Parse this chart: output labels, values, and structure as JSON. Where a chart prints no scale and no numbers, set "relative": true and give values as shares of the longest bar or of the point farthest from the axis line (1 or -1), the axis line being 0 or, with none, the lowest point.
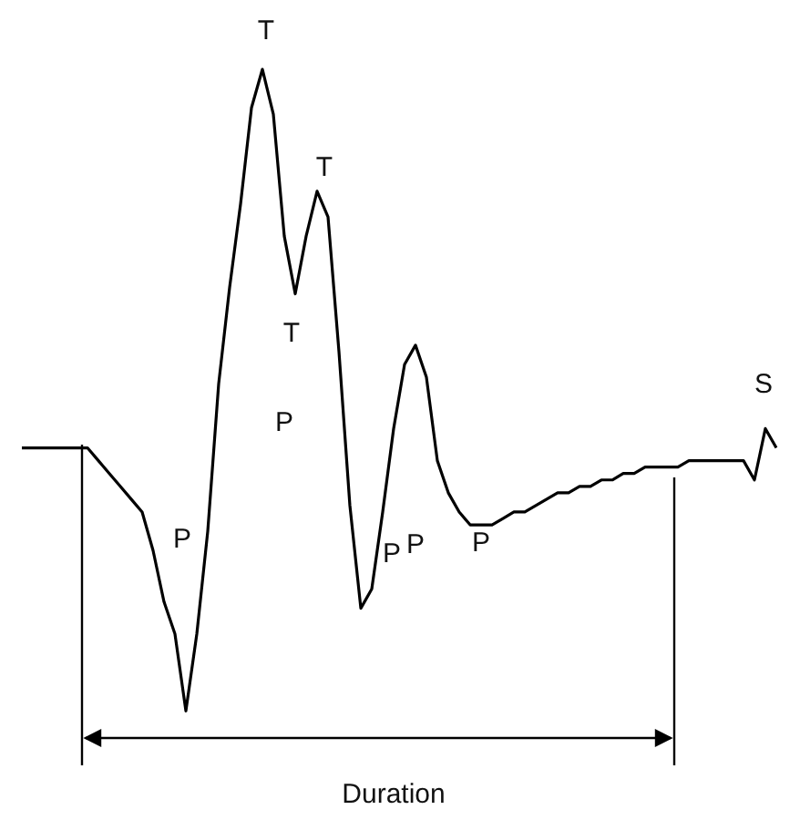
{
  "chart_data": {
    "type": "line",
    "relative": true,
    "legend": false,
    "grid": false,
    "tick_labels": false,
    "marker": "none",
    "line_style": "solid",
    "categories": [
      null,
      null,
      null,
      null,
      null,
      null,
      null,
      null,
      null,
      null,
      null,
      null,
      null,
      null,
      null,
      null,
      null,
      null,
      null,
      null,
      null,
      null,
      null,
      null,
      null,
      null,
      null,
      null,
      null,
      null,
      null,
      null,
      null,
      null,
      null,
      null,
      null,
      null,
      null,
      null,
      null,
      null,
      null,
      null,
      null,
      null,
      null,
      null,
      null,
      null,
      null,
      null,
      null,
      null,
      null,
      null,
      null,
      null,
      null,
      null,
      null,
      null,
      null,
      null,
      null,
      null,
      null,
      null,
      null,
      null
    ],
    "series": [
      {
        "color": "#000000",
        "values": [
          0.41,
          0.41,
          0.41,
          0.41,
          0.41,
          0.41,
          0.41,
          0.39,
          0.37,
          0.35,
          0.33,
          0.31,
          0.25,
          0.17,
          0.12,
          0,
          0.12,
          0.28,
          0.51,
          0.66,
          0.79,
          0.94,
          1,
          0.93,
          0.74,
          0.65,
          0.74,
          0.81,
          0.77,
          0.56,
          0.32,
          0.16,
          0.19,
          0.31,
          0.44,
          0.54,
          0.57,
          0.52,
          0.39,
          0.34,
          0.31,
          0.29,
          0.29,
          0.29,
          0.3,
          0.31,
          0.31,
          0.32,
          0.33,
          0.34,
          0.34,
          0.35,
          0.35,
          0.36,
          0.36,
          0.37,
          0.37,
          0.38,
          0.38,
          0.38,
          0.38,
          0.39,
          0.39,
          0.39,
          0.39,
          0.39,
          0.39,
          0.36,
          0.44,
          0.41
        ]
      }
    ],
    "annotations": [
      "T",
      "T",
      "T",
      "P",
      "P",
      "P",
      "P",
      "P",
      "S",
      "Duration"
    ]
  }
}
